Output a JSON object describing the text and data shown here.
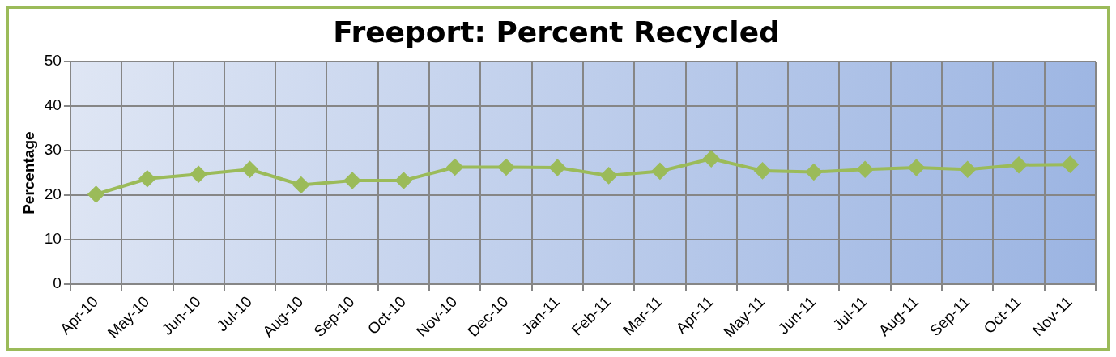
{
  "chart_data": {
    "type": "line",
    "title": "Freeport: Percent Recycled",
    "ylabel": "Percentage",
    "categories": [
      "Apr-10",
      "May-10",
      "Jun-10",
      "Jul-10",
      "Aug-10",
      "Sep-10",
      "Oct-10",
      "Nov-10",
      "Dec-10",
      "Jan-11",
      "Feb-11",
      "Mar-11",
      "Apr-11",
      "May-11",
      "Jun-11",
      "Jul-11",
      "Aug-11",
      "Sep-11",
      "Oct-11",
      "Nov-11"
    ],
    "series": [
      {
        "color": "#9bbb59",
        "values": [
          20.2,
          23.7,
          24.7,
          25.8,
          22.3,
          23.3,
          23.3,
          26.3,
          26.3,
          26.2,
          24.4,
          25.4,
          28.2,
          25.5,
          25.2,
          25.8,
          26.2,
          25.8,
          26.8,
          26.9
        ]
      }
    ],
    "ylim": [
      0,
      50
    ],
    "yticks": [
      0,
      10,
      20,
      30,
      40,
      50
    ],
    "grid": true,
    "legend": false,
    "marker": "diamond",
    "line_style": "solid"
  }
}
